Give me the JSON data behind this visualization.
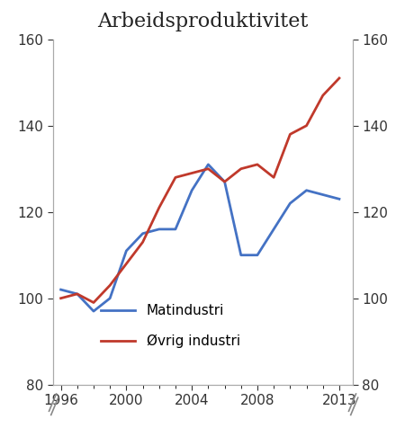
{
  "title": "Arbeidsproduktivitet",
  "years": [
    1996,
    1997,
    1998,
    1999,
    2000,
    2001,
    2002,
    2003,
    2004,
    2005,
    2006,
    2007,
    2008,
    2009,
    2010,
    2011,
    2012,
    2013
  ],
  "matindustri": [
    102,
    101,
    97,
    100,
    111,
    115,
    116,
    116,
    125,
    131,
    127,
    110,
    110,
    116,
    122,
    125,
    124,
    123
  ],
  "ovrig_industri": [
    100,
    101,
    99,
    103,
    108,
    113,
    121,
    128,
    129,
    130,
    127,
    130,
    131,
    128,
    138,
    140,
    147,
    151
  ],
  "line_color_mat": "#4472C4",
  "line_color_ovr": "#C0392B",
  "ylim": [
    80,
    160
  ],
  "yticks": [
    80,
    100,
    120,
    140,
    160
  ],
  "xticks": [
    1996,
    2000,
    2004,
    2008,
    2013
  ],
  "legend_mat": "Matindustri",
  "legend_ovr": "Øvrig industri",
  "background_color": "#ffffff",
  "title_fontsize": 16,
  "tick_fontsize": 11,
  "legend_fontsize": 11,
  "linewidth": 2.0,
  "spine_color": "#aaaaaa"
}
